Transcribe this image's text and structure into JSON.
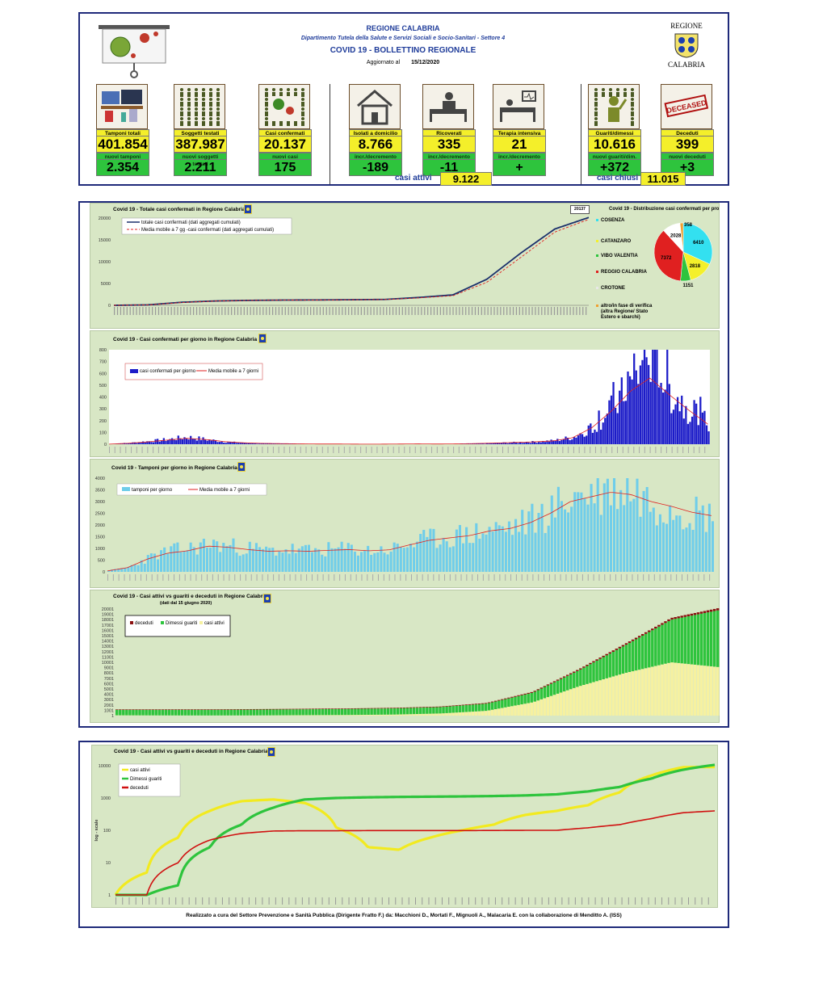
{
  "header": {
    "region": "REGIONE CALABRIA",
    "department": "Dipartimento Tutela della Salute e Servizi Sociali e Socio-Sanitari - Settore 4",
    "title": "COVID 19 - BOLLETTINO REGIONALE",
    "updated_label": "Aggiornato al",
    "updated_date": "15/12/2020",
    "logo_top": "REGIONE",
    "logo_bottom": "CALABRIA"
  },
  "tiles": [
    {
      "label": "Tamponi totali",
      "value": "401.854",
      "sub_label": "nuovi tamponi",
      "sub_value": "2.354",
      "icon": "lab-computer-icon"
    },
    {
      "label": "Soggetti testati",
      "value": "387.987",
      "sub_label": "nuovi soggetti testati",
      "sub_value": "2.211",
      "icon": "people-grid-icon"
    },
    {
      "label": "Casi confermati",
      "value": "20.137",
      "sub_label": "nuovi casi",
      "sub_value": "175",
      "icon": "virus-people-icon"
    },
    {
      "label": "Isolati a domicilio",
      "value": "8.766",
      "sub_label": "incr./decremento",
      "sub_value": "-189",
      "icon": "house-icon"
    },
    {
      "label": "Ricoverati",
      "value": "335",
      "sub_label": "incr./decremento",
      "sub_value": "-11",
      "icon": "hospital-bed-icon"
    },
    {
      "label": "Terapia intensiva",
      "value": "21",
      "sub_label": "incr./decremento",
      "sub_value": "+",
      "icon": "icu-bed-icon"
    },
    {
      "label": "Guariti/dimessi",
      "value": "10.616",
      "sub_label": "nuovi guariti/dim.",
      "sub_value": "+372",
      "icon": "recovered-person-icon"
    },
    {
      "label": "Deceduti",
      "value": "399",
      "sub_label": "nuovi deceduti",
      "sub_value": "+3",
      "icon": "deceased-stamp-icon"
    }
  ],
  "deceased_stamp": "DECEASED",
  "summary": {
    "active_label": "casi attivi",
    "active_value": "9.122",
    "closed_label": "casi chiusi",
    "closed_value": "11.015"
  },
  "colors": {
    "frame": "#1f2a7a",
    "panel_bg": "#d8e7c5",
    "tile_yellow": "#f4ef2a",
    "tile_green": "#2ec43d",
    "navy": "#1a2f6b",
    "red": "#e02020",
    "blue_bar": "#1c1cc8",
    "cyan_bar": "#6fcdea",
    "green": "#2ec43d",
    "dark_red": "#8b1010",
    "pale_yellow": "#f6f1a0",
    "yellow_line": "#f2ea1f"
  },
  "chart_data": [
    {
      "type": "line",
      "title": "Covid 19 - Totale casi confermati in Regione Calabria",
      "ylim": [
        0,
        20000
      ],
      "yticks": [
        "20000",
        "15000",
        "10000",
        "5000",
        "0"
      ],
      "badge": "20137",
      "series": [
        {
          "name": "totale casi confermati (dati aggregati cumulati)",
          "values": [
            0,
            100,
            700,
            1000,
            1130,
            1200,
            1230,
            1280,
            1350,
            1800,
            2400,
            6000,
            12000,
            17500,
            20137
          ]
        },
        {
          "name": "Media mobile a 7 gg -casi confermati (dati aggregati cumulati)",
          "values": [
            0,
            80,
            650,
            980,
            1120,
            1195,
            1225,
            1270,
            1330,
            1700,
            2200,
            5300,
            11000,
            16800,
            19700
          ]
        }
      ]
    },
    {
      "type": "pie",
      "title": "Covid 19 - Distribuzione casi confermati per provincia",
      "categories": [
        "COSENZA",
        "CATANZARO",
        "VIBO VALENTIA",
        "REGGIO CALABRIA",
        "CROTONE",
        "altro/in fase di verifica (altra Regione/ Stato Estero e sbarchi)"
      ],
      "values": [
        6410,
        2818,
        1151,
        7372,
        2028,
        358
      ],
      "colors": [
        "#33e0f0",
        "#f4f02a",
        "#2ec43d",
        "#e02020",
        "#ffffff",
        "#f0a030"
      ]
    },
    {
      "type": "bar",
      "title": "Covid 19 - Casi confermati per giorno in Regione Calabria",
      "ylim": [
        0,
        800
      ],
      "yticks": [
        "800",
        "700",
        "600",
        "500",
        "400",
        "300",
        "200",
        "100",
        "0"
      ],
      "series": [
        {
          "name": "casi confermati per giorno",
          "values": [
            2,
            10,
            25,
            40,
            60,
            40,
            20,
            10,
            6,
            5,
            3,
            2,
            2,
            1,
            1,
            2,
            3,
            2,
            2,
            5,
            10,
            15,
            20,
            30,
            60,
            150,
            300,
            500,
            780,
            450,
            300,
            180
          ]
        },
        {
          "name": "Media mobile a 7 giorni",
          "values": [
            1,
            8,
            20,
            35,
            50,
            40,
            22,
            12,
            7,
            5,
            3,
            2,
            2,
            1,
            1,
            2,
            3,
            2,
            3,
            6,
            10,
            15,
            20,
            28,
            55,
            140,
            280,
            450,
            560,
            420,
            290,
            170
          ]
        }
      ]
    },
    {
      "type": "bar",
      "title": "Covid 19 - Tamponi per giorno in Regione Calabria",
      "ylim": [
        0,
        4000
      ],
      "yticks": [
        "4000",
        "3500",
        "3000",
        "2500",
        "2000",
        "1500",
        "1000",
        "500",
        "0"
      ],
      "series": [
        {
          "name": "tamponi per giorno",
          "values": [
            50,
            200,
            600,
            900,
            1000,
            1200,
            1100,
            1000,
            900,
            950,
            900,
            950,
            1000,
            900,
            950,
            1200,
            1400,
            1500,
            1600,
            1800,
            1900,
            2200,
            2600,
            3200,
            3400,
            3600,
            3500,
            3000,
            2900,
            2600,
            2350
          ]
        },
        {
          "name": "Media mobile a 7 giorni",
          "values": [
            40,
            180,
            550,
            800,
            900,
            1100,
            1050,
            950,
            880,
            900,
            880,
            920,
            950,
            900,
            940,
            1150,
            1350,
            1450,
            1550,
            1750,
            1850,
            2100,
            2500,
            3000,
            3200,
            3400,
            3300,
            3000,
            2800,
            2550,
            2400
          ]
        }
      ]
    },
    {
      "type": "bar",
      "title": "Covid 19 - Casi attivi vs guariti e deceduti in Regione Calabria",
      "subtitle": "(dati dal 15 giugno 2020)",
      "yticks": [
        "20001",
        "19001",
        "18001",
        "17001",
        "16001",
        "15001",
        "14001",
        "13001",
        "12001",
        "11001",
        "10001",
        "9001",
        "8001",
        "7001",
        "6001",
        "5001",
        "4001",
        "3001",
        "2001",
        "1001",
        "1"
      ],
      "ylim": [
        1,
        20001
      ],
      "series": [
        {
          "name": "deceduti",
          "values": [
            97,
            97,
            98,
            100,
            100,
            102,
            105,
            110,
            130,
            170,
            220,
            280,
            340,
            399
          ]
        },
        {
          "name": "Dimessi guariti",
          "values": [
            1000,
            1020,
            1050,
            1080,
            1100,
            1130,
            1160,
            1200,
            1350,
            1800,
            3000,
            5200,
            8000,
            10616
          ]
        },
        {
          "name": "casi attivi",
          "values": [
            60,
            40,
            30,
            40,
            80,
            120,
            200,
            400,
            900,
            2500,
            5500,
            8000,
            10000,
            9122
          ]
        }
      ]
    },
    {
      "type": "line",
      "title": "Covid 19 - Casi attivi vs guariti e deceduti in Regione Calabria",
      "ylabel": "log - scale",
      "yticks": [
        "10000",
        "1000",
        "100",
        "10",
        "1"
      ],
      "series": [
        {
          "name": "casi attivi",
          "values": [
            1,
            5,
            60,
            400,
            800,
            900,
            700,
            120,
            30,
            25,
            60,
            100,
            150,
            300,
            400,
            600,
            1500,
            5000,
            9000,
            9122
          ]
        },
        {
          "name": "Dimessi guariti",
          "values": [
            1,
            1,
            2,
            30,
            150,
            500,
            900,
            1000,
            1050,
            1080,
            1100,
            1120,
            1150,
            1200,
            1300,
            1600,
            2200,
            4000,
            7500,
            10616
          ]
        },
        {
          "name": "deceduti",
          "values": [
            1,
            1,
            10,
            50,
            80,
            95,
            97,
            97,
            98,
            98,
            98,
            98,
            99,
            100,
            100,
            120,
            150,
            230,
            350,
            399
          ]
        }
      ]
    }
  ],
  "footer": "Realizzato a cura del Settore Prevenzione e Sanità Pubblica (Dirigente Fratto F.) da:  Macchioni D., Mortati F., Mignuoli A., Malacaria E. con la collaborazione di Menditto A. (ISS)"
}
